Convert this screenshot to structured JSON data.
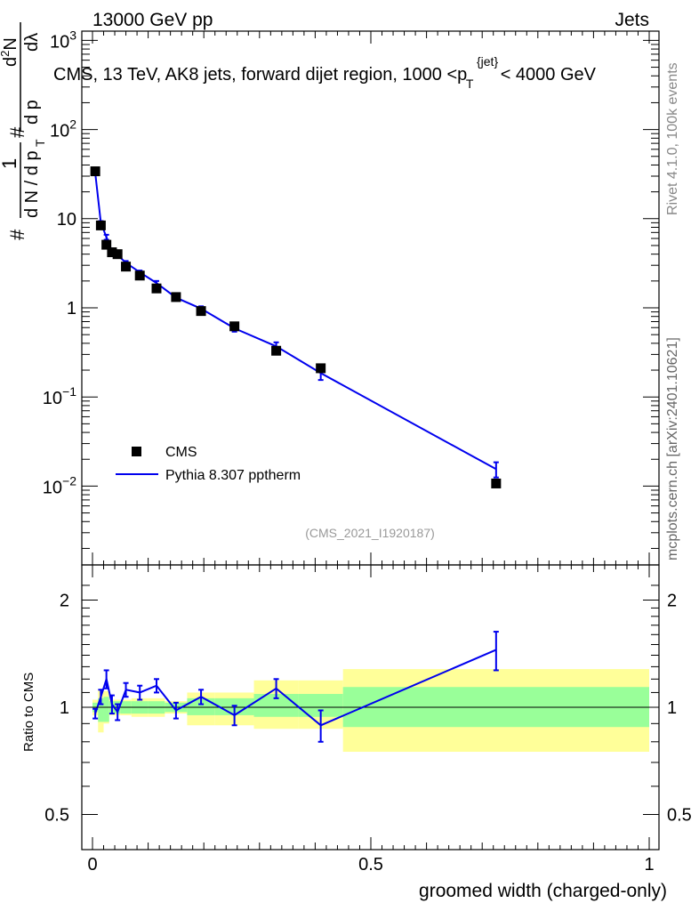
{
  "header": {
    "left": "13000 GeV pp",
    "right": "Jets"
  },
  "side": {
    "rivet": "Rivet 4.1.0,  100k events",
    "mcplots": "mcplots.cern.ch [arXiv:2401.10621]"
  },
  "chart_data": {
    "type": "line",
    "title": "CMS, 13 TeV, AK8 jets, forward dijet region, 1000 <p_T^{jet}< 4000 GeV",
    "title_parts": {
      "pre": "CMS, 13 TeV, AK8 jets, forward dijet region, 1000 <p",
      "sub": "T",
      "sup": "{jet}",
      "post": "< 4000 GeV"
    },
    "analysis_id": "(CMS_2021_I1920187)",
    "xlabel": "groomed width (charged-only)",
    "ylabel_main": "1/(dN/dp_T) d²N/(dp_T dλ)",
    "ylabel_main_parts": {
      "hash": "#",
      "one": "1",
      "dn": "d N / d p",
      "d2n": "d",
      "d2n_sup": "2",
      "d2n_n": "N",
      "dp_dl": "d p",
      "t": "T",
      "dl": "dλ"
    },
    "ylabel_ratio": "Ratio to CMS",
    "xlim": [
      0,
      1
    ],
    "ylim_main": [
      0.001,
      1500
    ],
    "ylim_ratio": [
      0.4,
      2.4
    ],
    "x_ticks": [
      {
        "v": 0,
        "label": "0"
      },
      {
        "v": 0.5,
        "label": "0.5"
      },
      {
        "v": 1,
        "label": "1"
      }
    ],
    "y_ticks_main": [
      {
        "v": 0.01,
        "base": "10",
        "exp": "−2"
      },
      {
        "v": 0.1,
        "base": "10",
        "exp": "−1"
      },
      {
        "v": 1,
        "base": "1",
        "exp": ""
      },
      {
        "v": 10,
        "base": "10",
        "exp": ""
      },
      {
        "v": 100,
        "base": "10",
        "exp": "2"
      },
      {
        "v": 1000,
        "base": "10",
        "exp": "3"
      }
    ],
    "y_ticks_ratio": [
      {
        "v": 0.5,
        "label": "0.5"
      },
      {
        "v": 1,
        "label": "1"
      },
      {
        "v": 2,
        "label": "2"
      }
    ],
    "legend": [
      {
        "name": "CMS",
        "style": "square-marker"
      },
      {
        "name": "Pythia 8.307 pptherm",
        "style": "line"
      }
    ],
    "colors": {
      "data": "#000000",
      "mc": "#0000ee",
      "band_inner": "#99ff99",
      "band_outer": "#ffff99"
    },
    "bin_edges": [
      0,
      0.01,
      0.02,
      0.03,
      0.04,
      0.05,
      0.07,
      0.1,
      0.13,
      0.17,
      0.22,
      0.29,
      0.37,
      0.45,
      1.0
    ],
    "data": {
      "x": [
        0.005,
        0.015,
        0.025,
        0.035,
        0.045,
        0.06,
        0.085,
        0.115,
        0.15,
        0.195,
        0.255,
        0.33,
        0.41,
        0.725
      ],
      "y": [
        34,
        8.4,
        5.1,
        4.2,
        4.0,
        2.9,
        2.3,
        1.65,
        1.32,
        0.92,
        0.62,
        0.33,
        0.21,
        0.0107
      ]
    },
    "mc": {
      "x": [
        0.005,
        0.015,
        0.025,
        0.035,
        0.045,
        0.06,
        0.085,
        0.115,
        0.15,
        0.195,
        0.255,
        0.33,
        0.41,
        0.725
      ],
      "y": [
        32.5,
        9.0,
        6.2,
        4.3,
        3.9,
        3.2,
        2.5,
        1.9,
        1.3,
        0.98,
        0.59,
        0.37,
        0.185,
        0.0155
      ],
      "err_low": [
        1.5,
        0.4,
        0.4,
        0.25,
        0.2,
        0.15,
        0.12,
        0.1,
        0.08,
        0.06,
        0.05,
        0.04,
        0.03,
        0.003
      ],
      "err_high": [
        1.5,
        0.4,
        0.4,
        0.25,
        0.2,
        0.15,
        0.12,
        0.1,
        0.08,
        0.06,
        0.05,
        0.04,
        0.03,
        0.003
      ]
    },
    "ratio": {
      "x": [
        0.005,
        0.015,
        0.025,
        0.035,
        0.045,
        0.06,
        0.085,
        0.115,
        0.15,
        0.195,
        0.255,
        0.33,
        0.41,
        0.725
      ],
      "y": [
        0.96,
        1.07,
        1.2,
        1.02,
        0.97,
        1.12,
        1.1,
        1.15,
        0.98,
        1.07,
        0.95,
        1.13,
        0.89,
        1.45
      ],
      "err": [
        0.03,
        0.05,
        0.07,
        0.06,
        0.05,
        0.05,
        0.05,
        0.05,
        0.05,
        0.05,
        0.06,
        0.07,
        0.09,
        0.18
      ]
    },
    "band": {
      "inner_lo": [
        0.97,
        0.91,
        0.91,
        0.96,
        0.96,
        0.96,
        0.96,
        0.96,
        0.97,
        0.95,
        0.95,
        0.94,
        0.94,
        0.88
      ],
      "inner_hi": [
        1.03,
        1.06,
        1.07,
        1.04,
        1.04,
        1.04,
        1.04,
        1.04,
        1.03,
        1.06,
        1.06,
        1.09,
        1.09,
        1.14
      ],
      "outer_lo": [
        0.95,
        0.85,
        0.9,
        0.95,
        0.95,
        0.95,
        0.94,
        0.94,
        0.96,
        0.89,
        0.89,
        0.87,
        0.87,
        0.75
      ],
      "outer_hi": [
        1.05,
        1.12,
        1.11,
        1.05,
        1.05,
        1.05,
        1.06,
        1.06,
        1.04,
        1.1,
        1.1,
        1.19,
        1.19,
        1.28
      ]
    }
  }
}
